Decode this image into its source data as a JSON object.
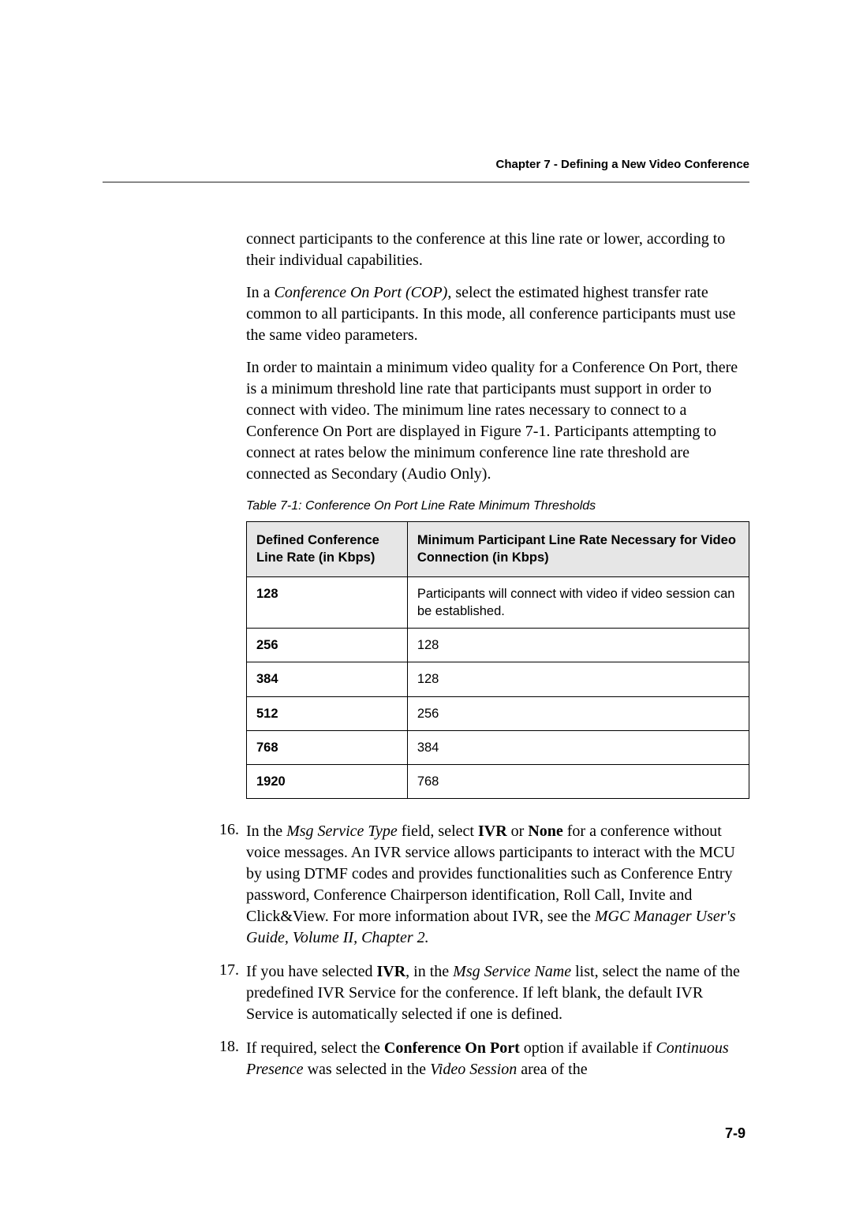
{
  "header": {
    "chapter_title": "Chapter 7 - Defining a New Video Conference"
  },
  "paragraphs": {
    "p1": "connect participants to the conference at this line rate or lower, according to their individual capabilities.",
    "p2_prefix": "In a ",
    "p2_italic": "Conference On Port (COP)",
    "p2_suffix": ", select the estimated highest transfer rate common to all participants. In this mode, all conference participants must use the same video parameters.",
    "p3": "In order to maintain a minimum video quality for a Conference On Port, there is a minimum threshold line rate that participants must support in order to connect with video. The minimum line rates necessary to connect to a Conference On Port are displayed in Figure 7-1. Participants attempting to connect at rates below the minimum conference line rate threshold are connected as Secondary (Audio Only)."
  },
  "table": {
    "caption": "Table 7-1: Conference On Port Line Rate Minimum Thresholds",
    "header_col1": "Defined Conference Line Rate (in Kbps)",
    "header_col2": "Minimum Participant Line Rate Necessary for Video Connection (in Kbps)",
    "rows": [
      {
        "rate": "128",
        "min": "Participants will connect with video if video session can be established."
      },
      {
        "rate": "256",
        "min": "128"
      },
      {
        "rate": "384",
        "min": "128"
      },
      {
        "rate": "512",
        "min": "256"
      },
      {
        "rate": "768",
        "min": "384"
      },
      {
        "rate": "1920",
        "min": "768"
      }
    ]
  },
  "list": {
    "item16": {
      "num": "16.",
      "t1": "In the ",
      "i1": "Msg Service Type",
      "t2": " field, select ",
      "b1": "IVR",
      "t3": " or ",
      "b2": "None",
      "t4": " for a conference without voice messages. An IVR service allows participants to interact with the MCU by using DTMF codes and provides functionalities such as Conference Entry password, Conference Chairperson identification, Roll Call, Invite and Click&View. For more information about IVR, see the ",
      "i2": "MGC Manager User's Guide, Volume II, Chapter 2."
    },
    "item17": {
      "num": "17.",
      "t1": "If you have selected ",
      "b1": "IVR",
      "t2": ", in the ",
      "i1": "Msg Service Name",
      "t3": " list, select the name of the predefined IVR Service for the conference. If left blank, the default IVR Service is automatically selected if one is defined."
    },
    "item18": {
      "num": "18.",
      "t1": "If required, select the ",
      "b1": "Conference On Port",
      "t2": " option if available if ",
      "i1": "Continuous Presence",
      "t3": " was selected in the ",
      "i2": "Video Session",
      "t4": " area of the"
    }
  },
  "page_number": "7-9"
}
